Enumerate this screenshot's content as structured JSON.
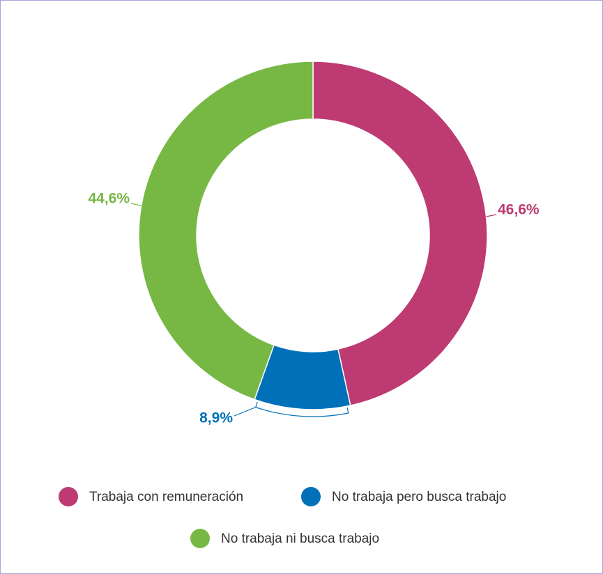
{
  "chart_data": {
    "type": "donut",
    "categories": [
      "Trabaja con remuneración",
      "No trabaja pero busca trabajo",
      "No trabaja ni busca trabajo"
    ],
    "values": [
      46.6,
      8.9,
      44.6
    ],
    "value_labels": [
      "46,6%",
      "8,9%",
      "44,6%"
    ],
    "colors": [
      "#bd3a72",
      "#0071b9",
      "#77b844"
    ],
    "legend": "bottom"
  }
}
